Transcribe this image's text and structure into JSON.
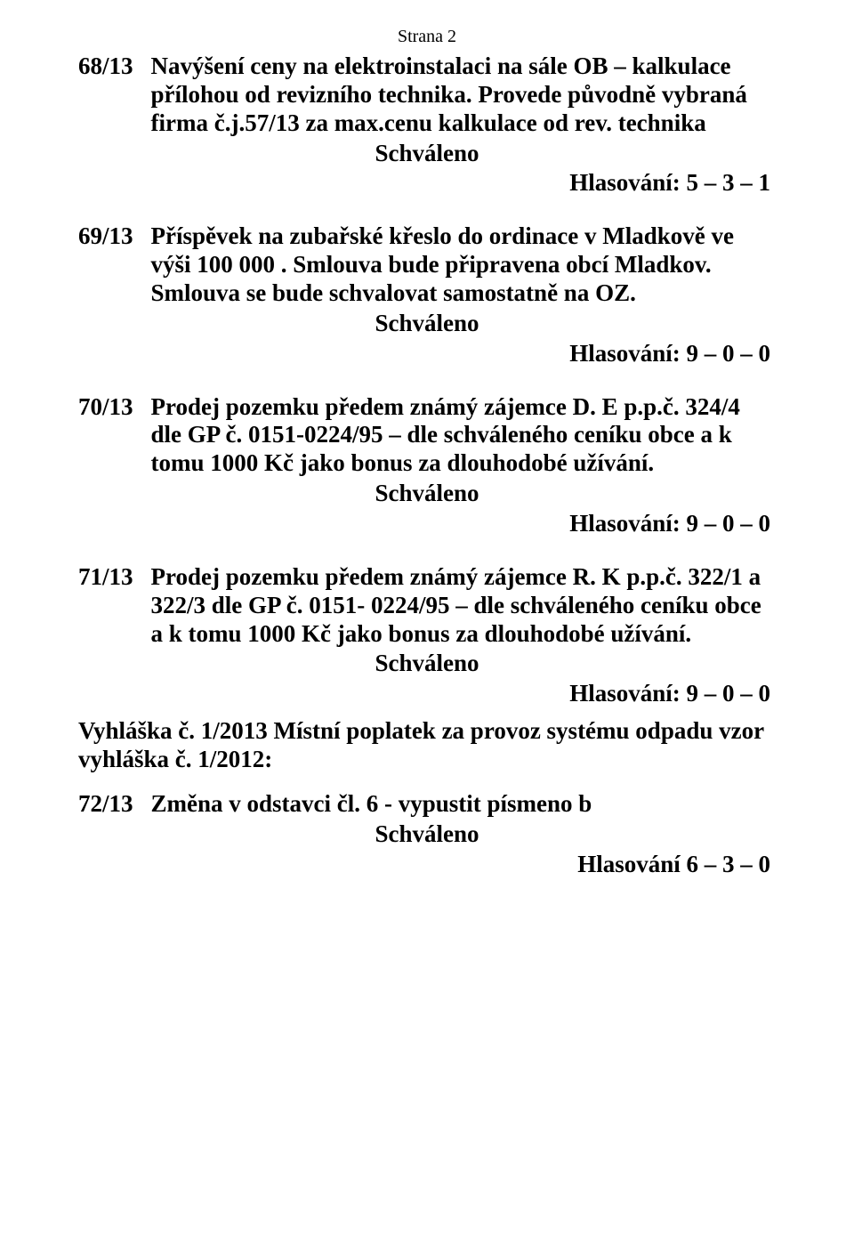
{
  "pageHeader": "Strana 2",
  "approvedLabel": "Schváleno",
  "entries": {
    "e68": {
      "num": "68/13",
      "text": "Navýšení ceny na elektroinstalaci na sále OB – kalkulace přílohou od revizního technika. Provede původně vybraná firma č.j.57/13 za max.cenu kalkulace od rev. technika",
      "voting": "Hlasování: 5 – 3 – 1"
    },
    "e69": {
      "num": "69/13",
      "text": "Příspěvek na zubařské křeslo do ordinace v Mladkově ve výši 100 000 . Smlouva bude připravena obcí Mladkov. Smlouva se bude schvalovat samostatně na OZ.",
      "voting": "Hlasování: 9 – 0 – 0"
    },
    "e70": {
      "num": "70/13",
      "text": "Prodej pozemku předem známý zájemce D. E p.p.č. 324/4 dle GP č. 0151-0224/95 – dle schváleného ceníku obce a k tomu 1000 Kč jako bonus za dlouhodobé užívání.",
      "voting": "Hlasování: 9 – 0 – 0"
    },
    "e71": {
      "num": "71/13",
      "text": "Prodej pozemku předem známý zájemce R. K  p.p.č. 322/1 a 322/3 dle GP č. 0151- 0224/95 – dle schváleného ceníku obce a k tomu 1000 Kč jako bonus za dlouhodobé užívání.",
      "voting": "Hlasování: 9 – 0 – 0"
    }
  },
  "decree": "Vyhláška č. 1/2013  Místní poplatek za provoz systému odpadu vzor vyhláška č. 1/2012:",
  "e72": {
    "num": "72/13",
    "text": "Změna v odstavci čl. 6  - vypustit písmeno b",
    "voting": "Hlasování  6 – 3 – 0"
  }
}
